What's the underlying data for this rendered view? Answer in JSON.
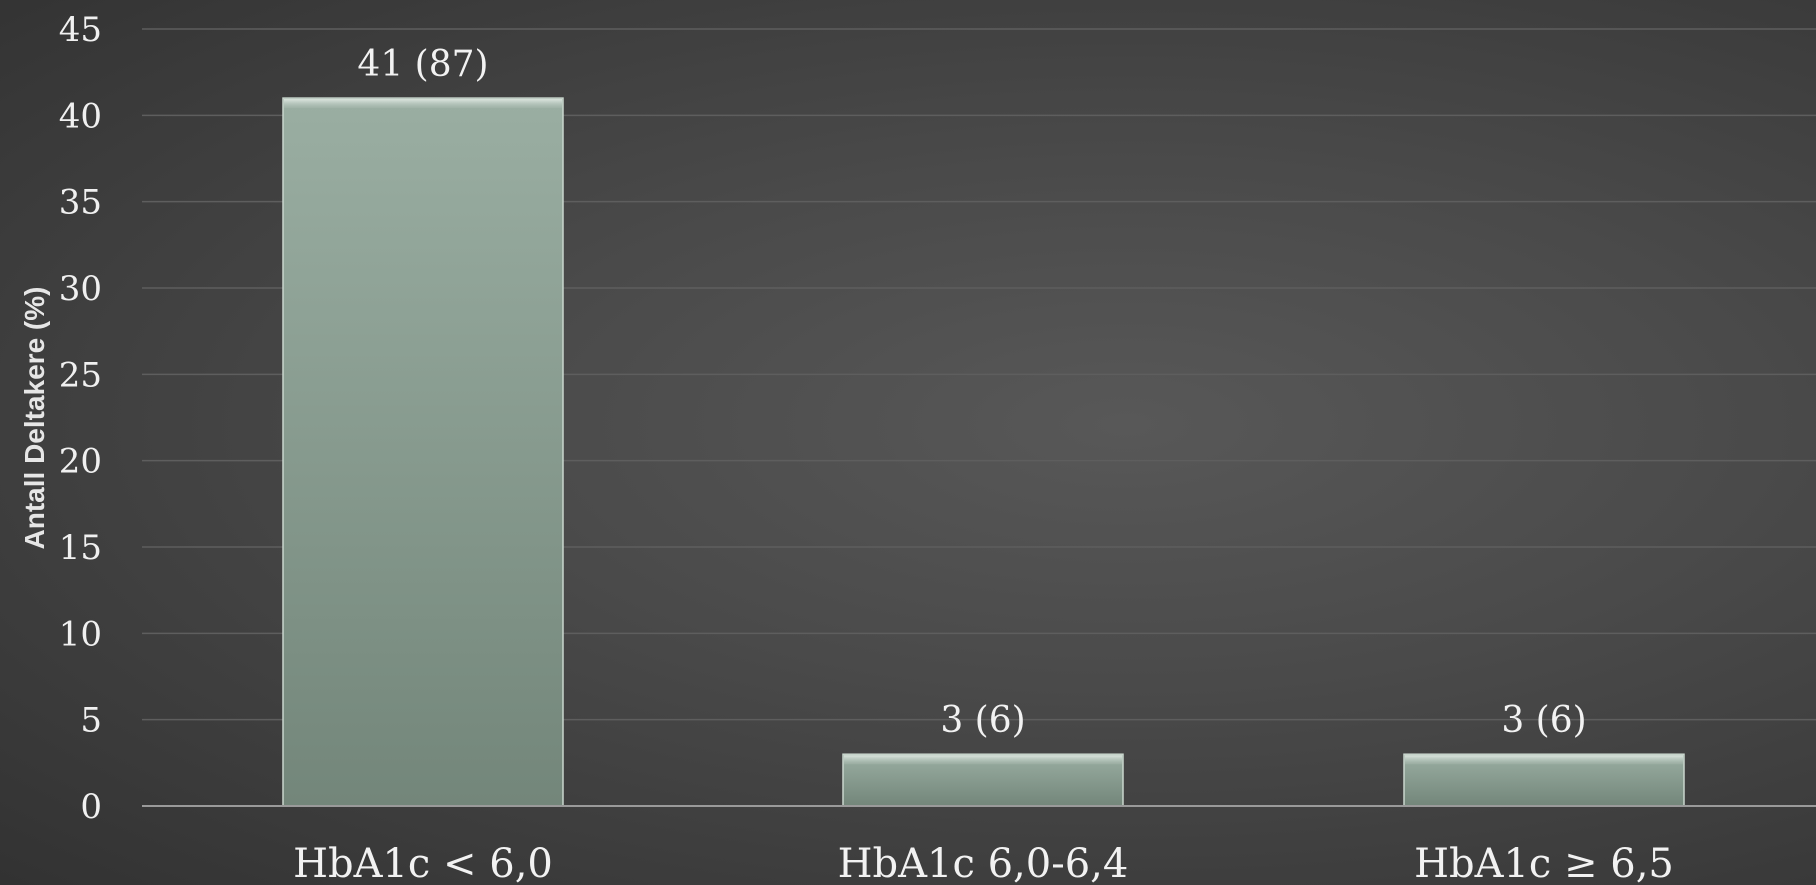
{
  "chart_data": {
    "type": "bar",
    "categories": [
      "HbA1c < 6,0",
      "HbA1c 6,0-6,4",
      "HbA1c ≥ 6,5"
    ],
    "values": [
      41,
      3,
      3
    ],
    "data_labels": [
      "41 (87)",
      "3 (6)",
      "3 (6)"
    ],
    "title": "",
    "xlabel": "",
    "ylabel": "Antall Deltakere (%)",
    "ylim": [
      0,
      45
    ],
    "yticks": [
      0,
      5,
      10,
      15,
      20,
      25,
      30,
      35,
      40,
      45
    ],
    "grid": true,
    "legend": "none",
    "colors": {
      "bar_top": "#9aaea2",
      "bar_bottom": "#73867a",
      "bar_edge": "#c9d6cd",
      "gridline": "#5e5e5e",
      "axis_line": "#9a9a9a"
    }
  }
}
